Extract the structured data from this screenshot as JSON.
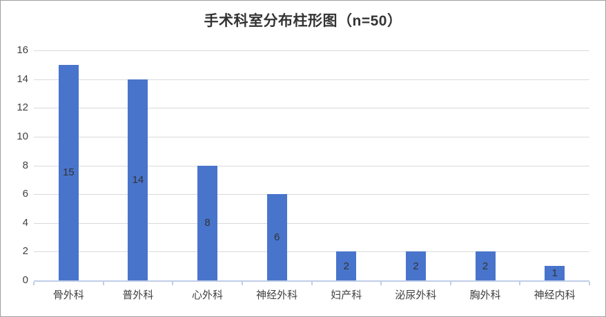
{
  "chart_data": {
    "type": "bar",
    "title": "手术科室分布柱形图（n=50）",
    "categories": [
      "骨外科",
      "普外科",
      "心外科",
      "神经外科",
      "妇产科",
      "泌尿外科",
      "胸外科",
      "神经内科"
    ],
    "values": [
      15,
      14,
      8,
      6,
      2,
      2,
      2,
      1
    ],
    "data_labels": [
      "15",
      "14",
      "8",
      "6",
      "2",
      "2",
      "2",
      "1"
    ],
    "ytick_labels": [
      "0",
      "2",
      "4",
      "6",
      "8",
      "10",
      "12",
      "14",
      "16"
    ],
    "ylim": [
      0,
      16
    ],
    "ytick_step": 2,
    "xlabel": "",
    "ylabel": "",
    "grid": true,
    "legend_position": "none",
    "data_label_position": "inside-center",
    "colors": {
      "bar": "#4874cb",
      "gridline": "#d9d9d9",
      "axis_line": "#bfcde8",
      "title_text": "#333333",
      "tick_text": "#404040",
      "data_label_text": "#333333",
      "frame_border": "#9e9e9e",
      "background": "#ffffff"
    }
  }
}
